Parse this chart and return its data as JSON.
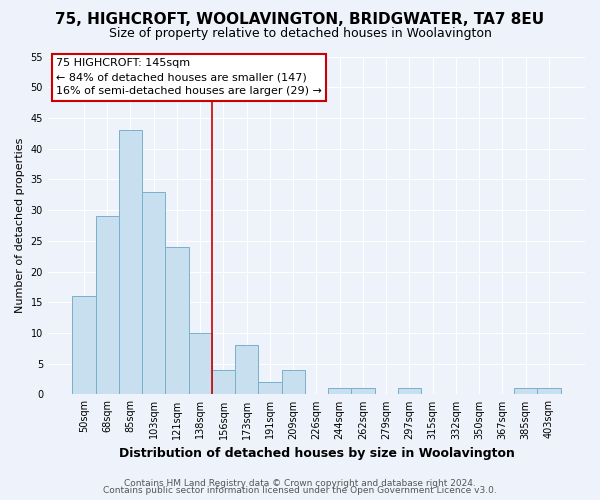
{
  "title": "75, HIGHCROFT, WOOLAVINGTON, BRIDGWATER, TA7 8EU",
  "subtitle": "Size of property relative to detached houses in Woolavington",
  "xlabel": "Distribution of detached houses by size in Woolavington",
  "ylabel": "Number of detached properties",
  "bar_labels": [
    "50sqm",
    "68sqm",
    "85sqm",
    "103sqm",
    "121sqm",
    "138sqm",
    "156sqm",
    "173sqm",
    "191sqm",
    "209sqm",
    "226sqm",
    "244sqm",
    "262sqm",
    "279sqm",
    "297sqm",
    "315sqm",
    "332sqm",
    "350sqm",
    "367sqm",
    "385sqm",
    "403sqm"
  ],
  "bar_values": [
    16,
    29,
    43,
    33,
    24,
    10,
    4,
    8,
    2,
    4,
    0,
    1,
    1,
    0,
    1,
    0,
    0,
    0,
    0,
    1,
    1
  ],
  "bar_color": "#c8dff0",
  "bar_edge_color": "#7ab0cc",
  "vline_x": 5.5,
  "vline_color": "#cc0000",
  "annotation_title": "75 HIGHCROFT: 145sqm",
  "annotation_line1": "← 84% of detached houses are smaller (147)",
  "annotation_line2": "16% of semi-detached houses are larger (29) →",
  "annotation_box_color": "#ffffff",
  "annotation_box_edge_color": "#cc0000",
  "ylim": [
    0,
    55
  ],
  "yticks": [
    0,
    5,
    10,
    15,
    20,
    25,
    30,
    35,
    40,
    45,
    50,
    55
  ],
  "footer1": "Contains HM Land Registry data © Crown copyright and database right 2024.",
  "footer2": "Contains public sector information licensed under the Open Government Licence v3.0.",
  "background_color": "#eef2fa",
  "grid_color": "#ffffff",
  "title_fontsize": 11,
  "subtitle_fontsize": 9,
  "xlabel_fontsize": 9,
  "ylabel_fontsize": 8,
  "tick_fontsize": 7,
  "annotation_fontsize": 8,
  "footer_fontsize": 6.5
}
